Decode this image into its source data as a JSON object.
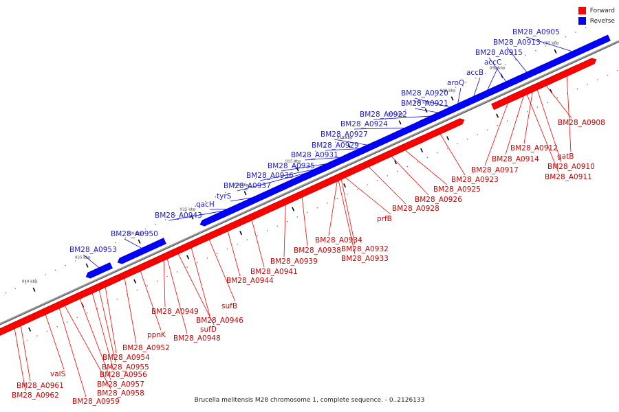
{
  "caption": "Brucella melitensis M28 chromosome 1, complete sequence. - 0..2126133",
  "legend": [
    {
      "label": "Forward",
      "color": "#ff0000"
    },
    {
      "label": "Reverse",
      "color": "#0000ff"
    }
  ],
  "colors": {
    "forward": "#ff0000",
    "reverse": "#0000ff",
    "backbone": "#888888"
  },
  "ticks": [
    "885 kbp",
    "890 kbp",
    "895 kbp",
    "900 kbp",
    "905 kbp",
    "910 kbp",
    "915 kbp",
    "920 kbp",
    "925 kbp",
    "930 kbp",
    "935 kbp",
    "940 kbp"
  ],
  "genes": [
    {
      "label": "BM28_A0905",
      "strand": "reverse"
    },
    {
      "label": "BM28_A0913",
      "strand": "reverse"
    },
    {
      "label": "BM28_A0915",
      "strand": "reverse"
    },
    {
      "label": "accC",
      "strand": "reverse"
    },
    {
      "label": "accB",
      "strand": "reverse"
    },
    {
      "label": "aroQ",
      "strand": "reverse"
    },
    {
      "label": "BM28_A0920",
      "strand": "reverse"
    },
    {
      "label": "BM28_A0921",
      "strand": "reverse"
    },
    {
      "label": "BM28_A0922",
      "strand": "reverse"
    },
    {
      "label": "BM28_A0924",
      "strand": "reverse"
    },
    {
      "label": "BM28_A0927",
      "strand": "reverse"
    },
    {
      "label": "BM28_A0929",
      "strand": "reverse"
    },
    {
      "label": "BM28_A0931",
      "strand": "reverse"
    },
    {
      "label": "BM28_A0935",
      "strand": "reverse"
    },
    {
      "label": "BM28_A0936",
      "strand": "reverse"
    },
    {
      "label": "BM28_A0937",
      "strand": "reverse"
    },
    {
      "label": "tyrS",
      "strand": "reverse"
    },
    {
      "label": "qacH",
      "strand": "reverse"
    },
    {
      "label": "BM28_A0943",
      "strand": "reverse"
    },
    {
      "label": "BM28_A0950",
      "strand": "reverse"
    },
    {
      "label": "BM28_A0953",
      "strand": "reverse"
    },
    {
      "label": "BM28_A0908",
      "strand": "forward"
    },
    {
      "label": "gatB",
      "strand": "forward"
    },
    {
      "label": "BM28_A0912",
      "strand": "forward"
    },
    {
      "label": "BM28_A0914",
      "strand": "forward"
    },
    {
      "label": "BM28_A0910",
      "strand": "forward"
    },
    {
      "label": "BM28_A0911",
      "strand": "forward"
    },
    {
      "label": "BM28_A0917",
      "strand": "forward"
    },
    {
      "label": "BM28_A0923",
      "strand": "forward"
    },
    {
      "label": "BM28_A0925",
      "strand": "forward"
    },
    {
      "label": "BM28_A0926",
      "strand": "forward"
    },
    {
      "label": "BM28_A0928",
      "strand": "forward"
    },
    {
      "label": "prfB",
      "strand": "forward"
    },
    {
      "label": "BM28_A0934",
      "strand": "forward"
    },
    {
      "label": "BM28_A0932",
      "strand": "forward"
    },
    {
      "label": "BM28_A0933",
      "strand": "forward"
    },
    {
      "label": "BM28_A0938",
      "strand": "forward"
    },
    {
      "label": "BM28_A0939",
      "strand": "forward"
    },
    {
      "label": "BM28_A0941",
      "strand": "forward"
    },
    {
      "label": "BM28_A0944",
      "strand": "forward"
    },
    {
      "label": "sufB",
      "strand": "forward"
    },
    {
      "label": "BM28_A0946",
      "strand": "forward"
    },
    {
      "label": "sufD",
      "strand": "forward"
    },
    {
      "label": "BM28_A0948",
      "strand": "forward"
    },
    {
      "label": "BM28_A0949",
      "strand": "forward"
    },
    {
      "label": "ppnK",
      "strand": "forward"
    },
    {
      "label": "BM28_A0952",
      "strand": "forward"
    },
    {
      "label": "BM28_A0954",
      "strand": "forward"
    },
    {
      "label": "BM28_A0955",
      "strand": "forward"
    },
    {
      "label": "BM28_A0956",
      "strand": "forward"
    },
    {
      "label": "BM28_A0957",
      "strand": "forward"
    },
    {
      "label": "BM28_A0958",
      "strand": "forward"
    },
    {
      "label": "BM28_A0959",
      "strand": "forward"
    },
    {
      "label": "valS",
      "strand": "forward"
    },
    {
      "label": "BM28_A0961",
      "strand": "forward"
    },
    {
      "label": "BM28_A0962",
      "strand": "forward"
    }
  ]
}
